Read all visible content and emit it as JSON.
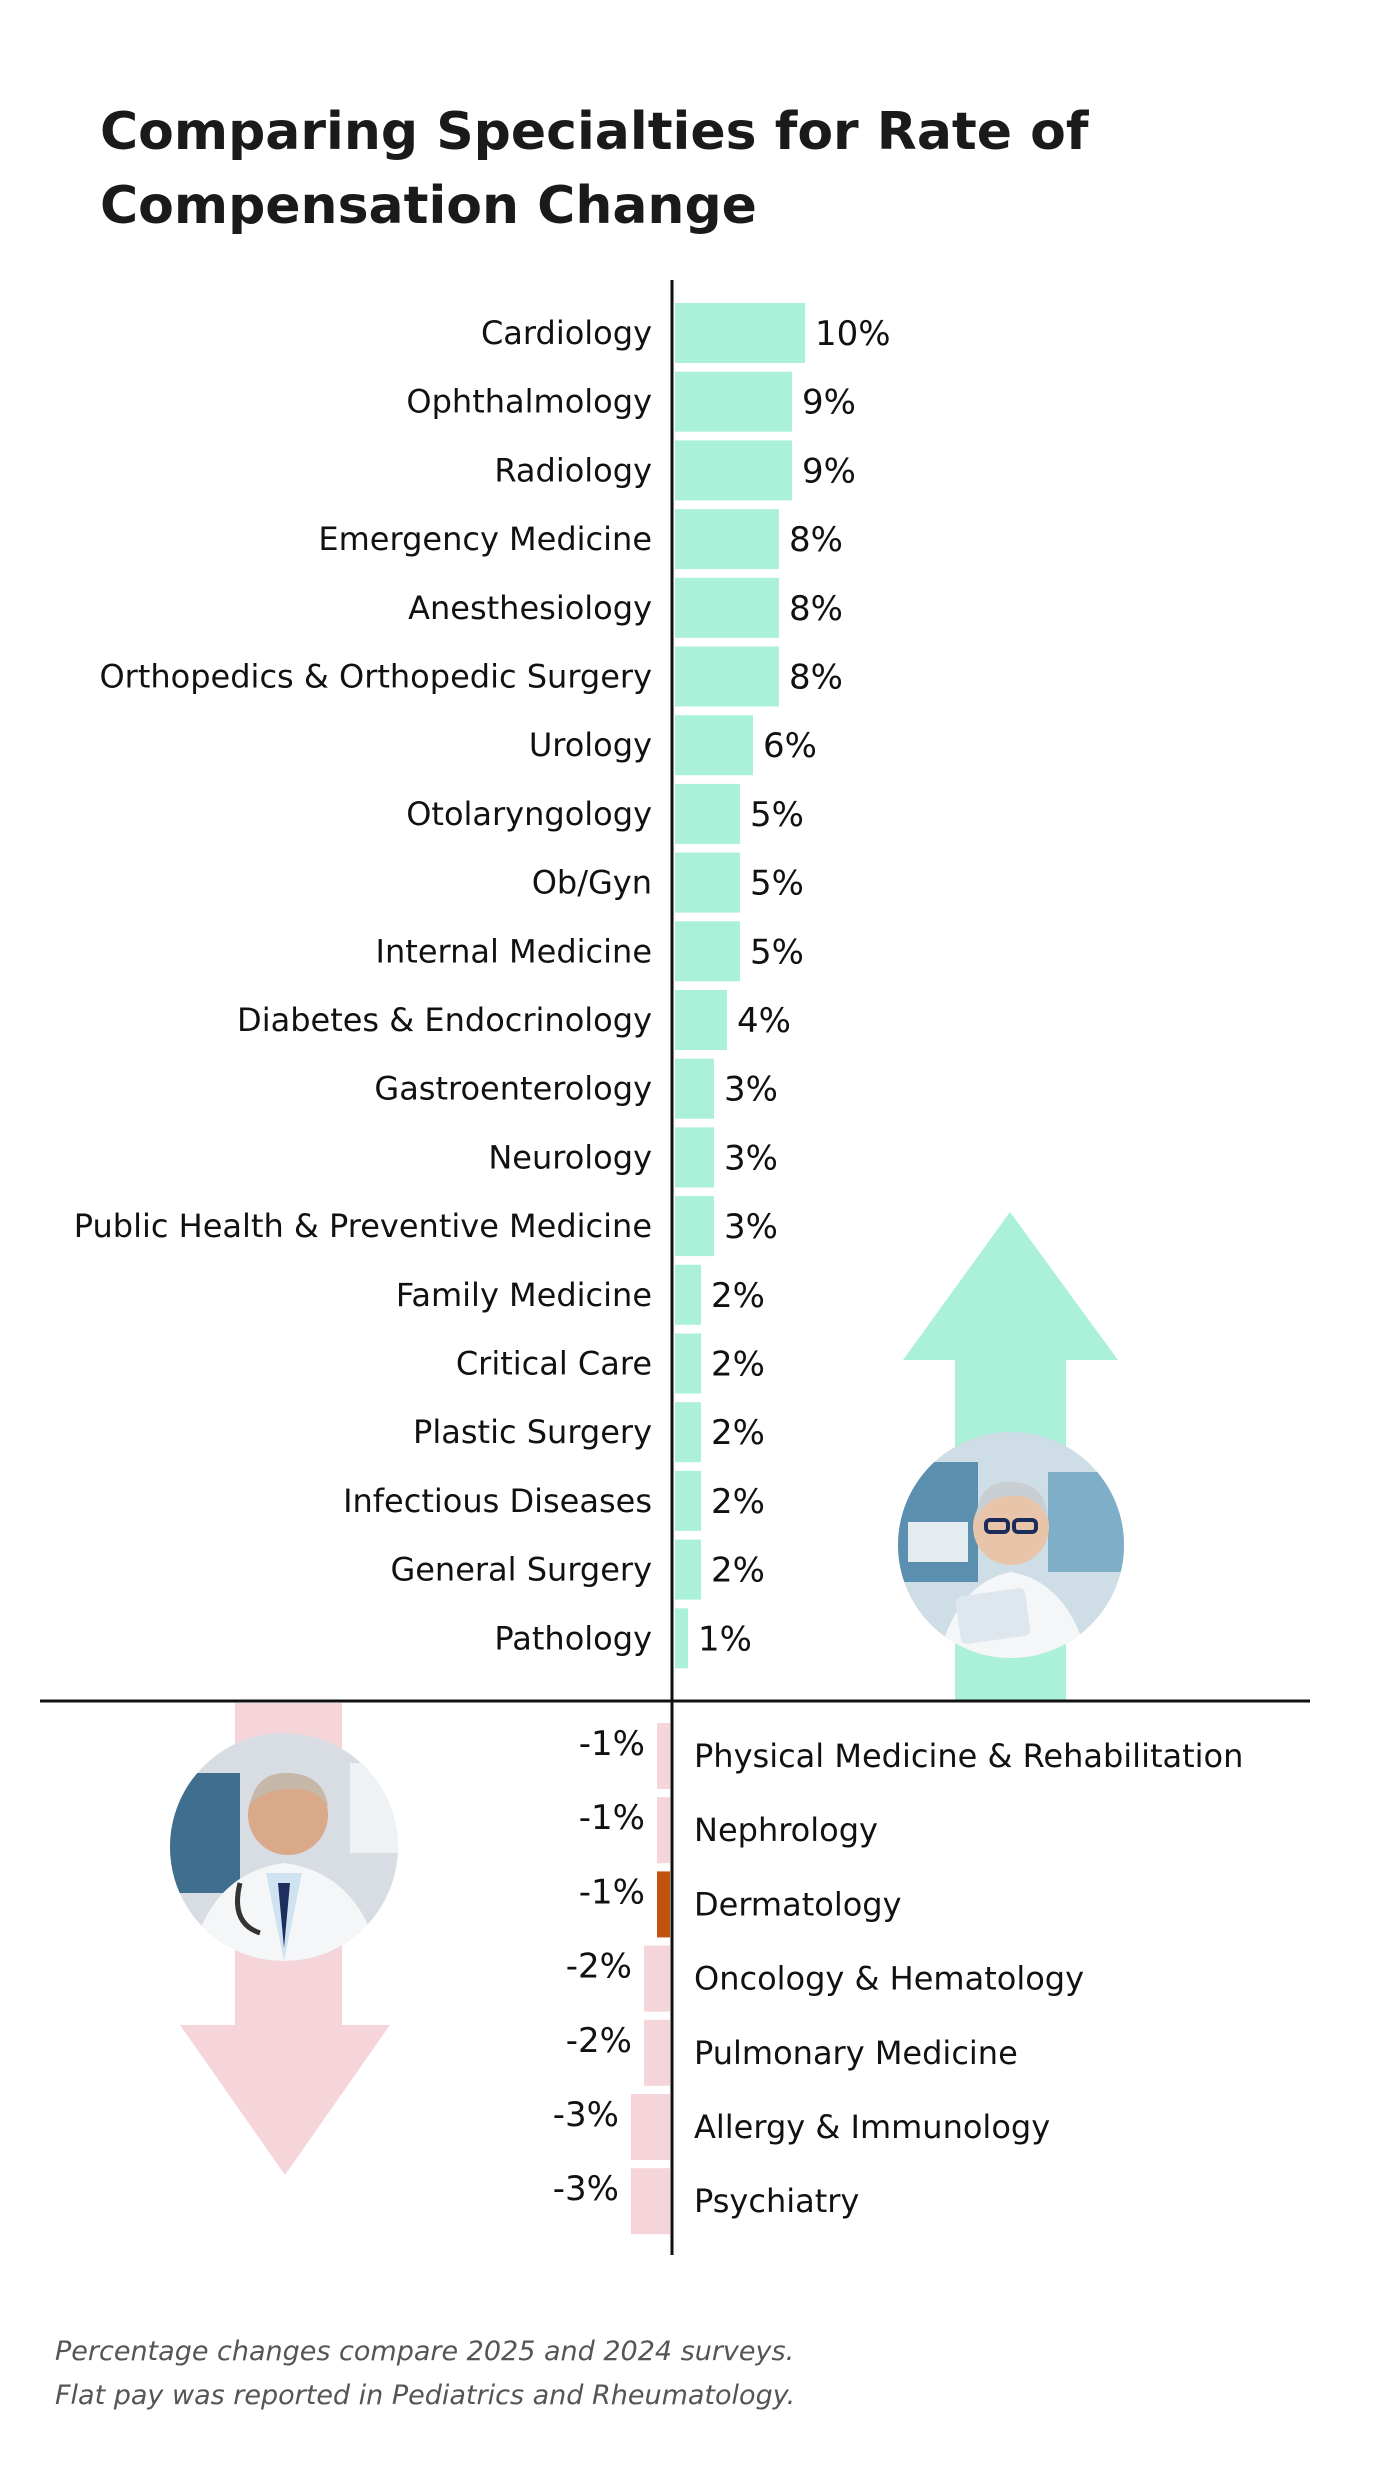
{
  "title": "Comparing Specialties for Rate of Compensation Change",
  "footnote": {
    "line1": "Percentage changes compare 2025 and 2024 surveys.",
    "line2": "Flat pay was reported in Pediatrics and Rheumatology."
  },
  "colors": {
    "positive": "#abf0d8",
    "negative": "#f5d5da",
    "highlight": "#c0530f",
    "axis": "#111111",
    "text": "#111111"
  },
  "icons": {
    "up_arrow": "up-arrow-icon",
    "down_arrow": "down-arrow-icon",
    "female_doctor": "female-doctor-photo",
    "male_doctor": "male-doctor-photo"
  },
  "chart_data": {
    "type": "bar",
    "orientation": "horizontal",
    "xlabel": "",
    "ylabel": "",
    "grid": false,
    "positive": {
      "categories": [
        "Cardiology",
        "Ophthalmology",
        "Radiology",
        "Emergency Medicine",
        "Anesthesiology",
        "Orthopedics & Orthopedic Surgery",
        "Urology",
        "Otolaryngology",
        "Ob/Gyn",
        "Internal Medicine",
        "Diabetes & Endocrinology",
        "Gastroenterology",
        "Neurology",
        "Public Health & Preventive Medicine",
        "Family Medicine",
        "Critical Care",
        "Plastic Surgery",
        "Infectious Diseases",
        "General Surgery",
        "Pathology"
      ],
      "values": [
        10,
        9,
        9,
        8,
        8,
        8,
        6,
        5,
        5,
        5,
        4,
        3,
        3,
        3,
        2,
        2,
        2,
        2,
        2,
        1
      ],
      "labels": [
        "10%",
        "9%",
        "9%",
        "8%",
        "8%",
        "8%",
        "6%",
        "5%",
        "5%",
        "5%",
        "4%",
        "3%",
        "3%",
        "3%",
        "2%",
        "2%",
        "2%",
        "2%",
        "2%",
        "1%"
      ]
    },
    "negative": {
      "categories": [
        "Physical Medicine & Rehabilitation",
        "Nephrology",
        "Dermatology",
        "Oncology & Hematology",
        "Pulmonary Medicine",
        "Allergy & Immunology",
        "Psychiatry"
      ],
      "values": [
        -1,
        -1,
        -1,
        -2,
        -2,
        -3,
        -3
      ],
      "labels": [
        "-1%",
        "-1%",
        "-1%",
        "-2%",
        "-2%",
        "-3%",
        "-3%"
      ],
      "highlighted": [
        "Dermatology"
      ]
    }
  }
}
